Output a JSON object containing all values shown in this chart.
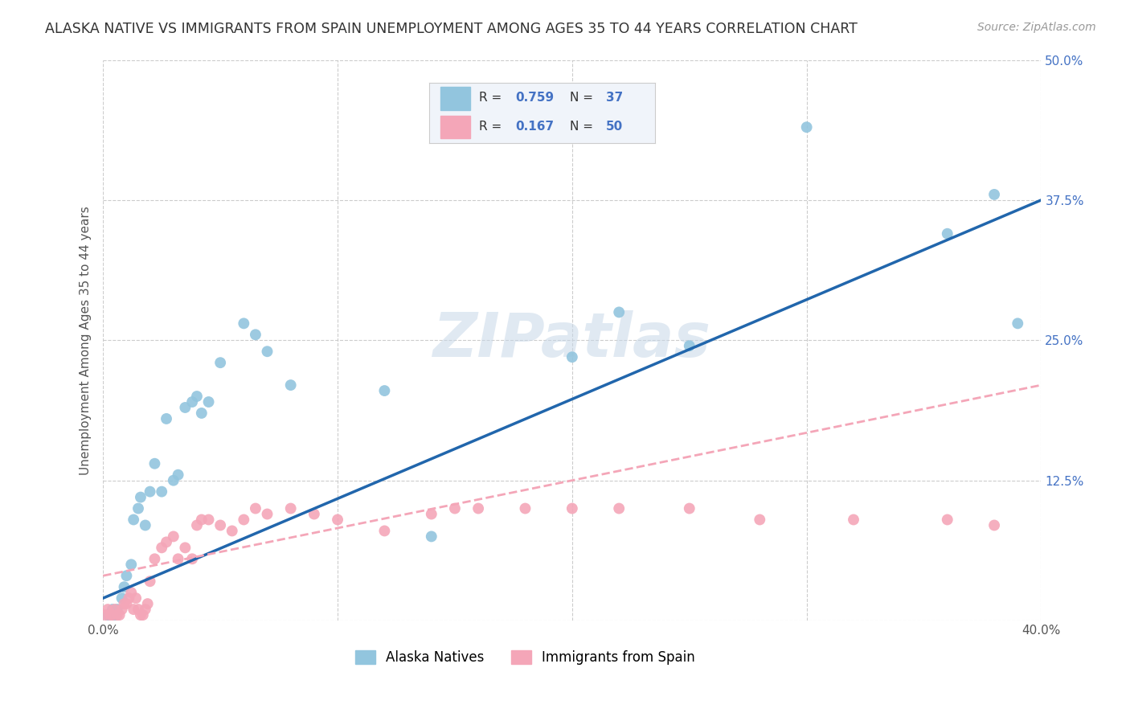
{
  "title": "ALASKA NATIVE VS IMMIGRANTS FROM SPAIN UNEMPLOYMENT AMONG AGES 35 TO 44 YEARS CORRELATION CHART",
  "source": "Source: ZipAtlas.com",
  "ylabel": "Unemployment Among Ages 35 to 44 years",
  "xlim": [
    0.0,
    0.4
  ],
  "ylim": [
    0.0,
    0.5
  ],
  "xticks": [
    0.0,
    0.1,
    0.2,
    0.3,
    0.4
  ],
  "yticks": [
    0.0,
    0.125,
    0.25,
    0.375,
    0.5
  ],
  "xtick_labels": [
    "0.0%",
    "",
    "",
    "",
    "40.0%"
  ],
  "ytick_labels": [
    "",
    "12.5%",
    "25.0%",
    "37.5%",
    "50.0%"
  ],
  "watermark": "ZIPatlas",
  "legend_label1": "Alaska Natives",
  "legend_label2": "Immigrants from Spain",
  "color_blue": "#92c5de",
  "color_pink": "#f4a6b8",
  "color_blue_text": "#4472c4",
  "color_line_blue": "#2166ac",
  "color_line_pink": "#f4a6b8",
  "grid_color": "#cccccc",
  "background_color": "#ffffff",
  "title_fontsize": 12.5,
  "label_fontsize": 11,
  "tick_fontsize": 11,
  "source_fontsize": 10,
  "blue_x": [
    0.002,
    0.004,
    0.005,
    0.006,
    0.008,
    0.009,
    0.01,
    0.012,
    0.013,
    0.015,
    0.016,
    0.018,
    0.02,
    0.022,
    0.025,
    0.027,
    0.03,
    0.032,
    0.035,
    0.038,
    0.04,
    0.042,
    0.045,
    0.05,
    0.06,
    0.065,
    0.07,
    0.08,
    0.12,
    0.14,
    0.2,
    0.22,
    0.25,
    0.3,
    0.36,
    0.38,
    0.39
  ],
  "blue_y": [
    0.005,
    0.01,
    0.005,
    0.01,
    0.02,
    0.03,
    0.04,
    0.05,
    0.09,
    0.1,
    0.11,
    0.085,
    0.115,
    0.14,
    0.115,
    0.18,
    0.125,
    0.13,
    0.19,
    0.195,
    0.2,
    0.185,
    0.195,
    0.23,
    0.265,
    0.255,
    0.24,
    0.21,
    0.205,
    0.075,
    0.235,
    0.275,
    0.245,
    0.44,
    0.345,
    0.38,
    0.265
  ],
  "pink_x": [
    0.001,
    0.002,
    0.003,
    0.004,
    0.005,
    0.006,
    0.007,
    0.008,
    0.009,
    0.01,
    0.011,
    0.012,
    0.013,
    0.014,
    0.015,
    0.016,
    0.017,
    0.018,
    0.019,
    0.02,
    0.022,
    0.025,
    0.027,
    0.03,
    0.032,
    0.035,
    0.038,
    0.04,
    0.042,
    0.045,
    0.05,
    0.055,
    0.06,
    0.065,
    0.07,
    0.08,
    0.09,
    0.1,
    0.12,
    0.14,
    0.15,
    0.16,
    0.18,
    0.2,
    0.22,
    0.25,
    0.28,
    0.32,
    0.36,
    0.38
  ],
  "pink_y": [
    0.005,
    0.01,
    0.005,
    0.005,
    0.01,
    0.005,
    0.005,
    0.01,
    0.015,
    0.015,
    0.02,
    0.025,
    0.01,
    0.02,
    0.01,
    0.005,
    0.005,
    0.01,
    0.015,
    0.035,
    0.055,
    0.065,
    0.07,
    0.075,
    0.055,
    0.065,
    0.055,
    0.085,
    0.09,
    0.09,
    0.085,
    0.08,
    0.09,
    0.1,
    0.095,
    0.1,
    0.095,
    0.09,
    0.08,
    0.095,
    0.1,
    0.1,
    0.1,
    0.1,
    0.1,
    0.1,
    0.09,
    0.09,
    0.09,
    0.085
  ]
}
